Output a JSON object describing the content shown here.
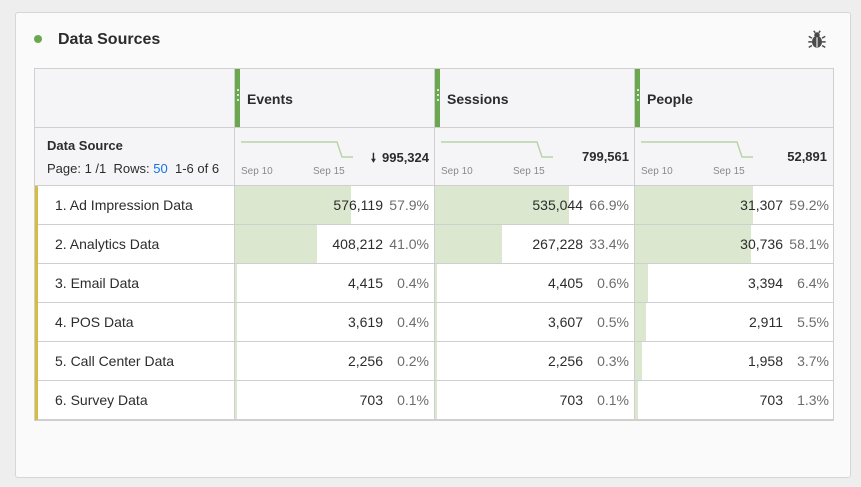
{
  "panel": {
    "title": "Data Sources"
  },
  "columns": [
    {
      "label": "Events",
      "total": "995,324",
      "spark_start": "Sep 10",
      "spark_end": "Sep 15",
      "sorted": true
    },
    {
      "label": "Sessions",
      "total": "799,561",
      "spark_start": "Sep 10",
      "spark_end": "Sep 15",
      "sorted": false
    },
    {
      "label": "People",
      "total": "52,891",
      "spark_start": "Sep 10",
      "spark_end": "Sep 15",
      "sorted": false
    }
  ],
  "dimension": {
    "title": "Data Source",
    "page_prefix": "Page: 1 /1",
    "rows_label": "Rows:",
    "rows_value": "50",
    "range": "1-6 of 6"
  },
  "rows": [
    {
      "label": "1. Ad Impression Data",
      "cells": [
        {
          "value": "576,119",
          "pct": "57.9%",
          "share": 0.579
        },
        {
          "value": "535,044",
          "pct": "66.9%",
          "share": 0.669
        },
        {
          "value": "31,307",
          "pct": "59.2%",
          "share": 0.592
        }
      ]
    },
    {
      "label": "2. Analytics Data",
      "cells": [
        {
          "value": "408,212",
          "pct": "41.0%",
          "share": 0.41
        },
        {
          "value": "267,228",
          "pct": "33.4%",
          "share": 0.334
        },
        {
          "value": "30,736",
          "pct": "58.1%",
          "share": 0.581
        }
      ]
    },
    {
      "label": "3. Email Data",
      "cells": [
        {
          "value": "4,415",
          "pct": "0.4%",
          "share": 0.004
        },
        {
          "value": "4,405",
          "pct": "0.6%",
          "share": 0.006
        },
        {
          "value": "3,394",
          "pct": "6.4%",
          "share": 0.064
        }
      ]
    },
    {
      "label": "4. POS Data",
      "cells": [
        {
          "value": "3,619",
          "pct": "0.4%",
          "share": 0.004
        },
        {
          "value": "3,607",
          "pct": "0.5%",
          "share": 0.005
        },
        {
          "value": "2,911",
          "pct": "5.5%",
          "share": 0.055
        }
      ]
    },
    {
      "label": "5. Call Center Data",
      "cells": [
        {
          "value": "2,256",
          "pct": "0.2%",
          "share": 0.002
        },
        {
          "value": "2,256",
          "pct": "0.3%",
          "share": 0.003
        },
        {
          "value": "1,958",
          "pct": "3.7%",
          "share": 0.037
        }
      ]
    },
    {
      "label": "6. Survey Data",
      "cells": [
        {
          "value": "703",
          "pct": "0.1%",
          "share": 0.001
        },
        {
          "value": "703",
          "pct": "0.1%",
          "share": 0.001
        },
        {
          "value": "703",
          "pct": "1.3%",
          "share": 0.013
        }
      ]
    }
  ],
  "icons": {
    "status_dot": "green-dot-icon",
    "bug": "bug-icon",
    "sort": "sort-descending-icon",
    "grip": "drag-handle-icon"
  },
  "colors": {
    "accent": "#6aa84f",
    "bar_fill": "#dbe8cf",
    "row_marker": "#d6bc44",
    "link": "#1473e6"
  }
}
